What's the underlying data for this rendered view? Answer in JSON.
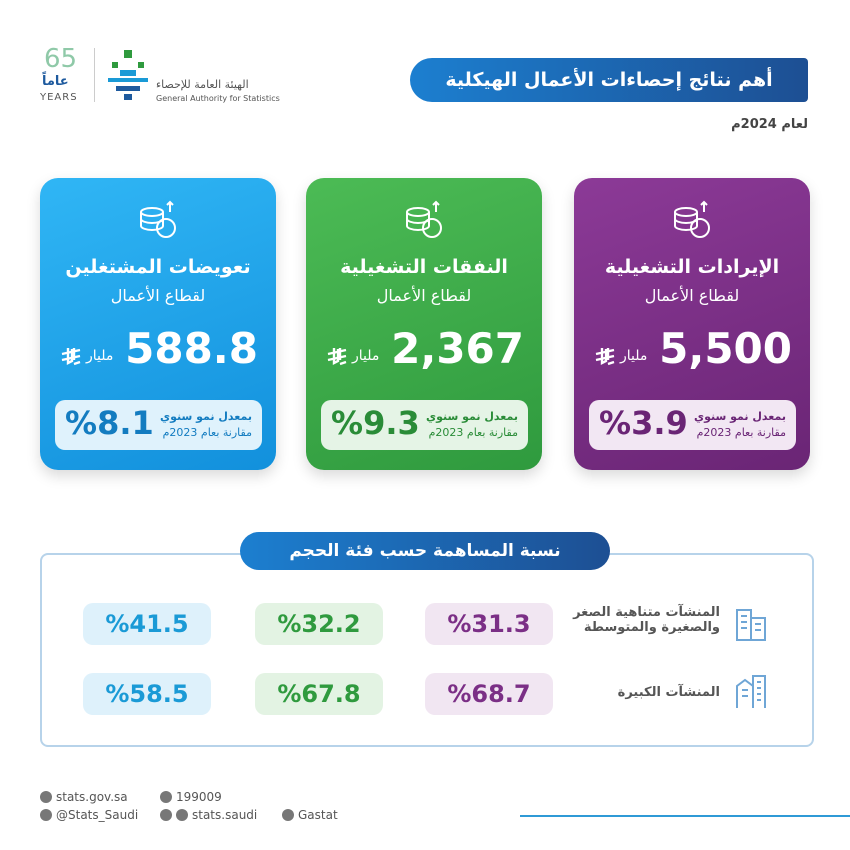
{
  "header": {
    "logo_years": "65",
    "logo_years_ar": "عاماً",
    "logo_years_en": "YEARS",
    "org_ar": "الهيئة العامة للإحصاء",
    "org_en": "General Authority for Statistics",
    "title": "أهم نتائج إحصاءات الأعمال الهيكلية",
    "subtitle": "لعام 2024م"
  },
  "cards": [
    {
      "title": "الإيرادات التشغيلية",
      "subtitle": "لقطاع الأعمال",
      "value": "5,500",
      "unit": "مليار",
      "growth_label": "بمعدل نمو سنوي",
      "growth_compare": "مقارنة بعام 2023م",
      "growth": "%3.9"
    },
    {
      "title": "النفقات التشغيلية",
      "subtitle": "لقطاع الأعمال",
      "value": "2,367",
      "unit": "مليار",
      "growth_label": "بمعدل نمو سنوي",
      "growth_compare": "مقارنة بعام 2023م",
      "growth": "%9.3"
    },
    {
      "title": "تعويضات المشتغلين",
      "subtitle": "لقطاع الأعمال",
      "value": "588.8",
      "unit": "مليار",
      "growth_label": "بمعدل نمو سنوي",
      "growth_compare": "مقارنة بعام 2023م",
      "growth": "%8.1"
    }
  ],
  "contribution": {
    "title": "نسبة المساهمة حسب فئة الحجم",
    "rows": [
      {
        "label": "المنشآت متناهية الصغر والصغيرة والمتوسطة",
        "values": [
          "%31.3",
          "%32.2",
          "%41.5"
        ]
      },
      {
        "label": "المنشآت الكبيرة",
        "values": [
          "%68.7",
          "%67.8",
          "%58.5"
        ]
      }
    ]
  },
  "footer": {
    "website": "stats.gov.sa",
    "phone": "199009",
    "x": "@Stats_Saudi",
    "social": "stats.saudi",
    "linkedin": "Gastat"
  }
}
